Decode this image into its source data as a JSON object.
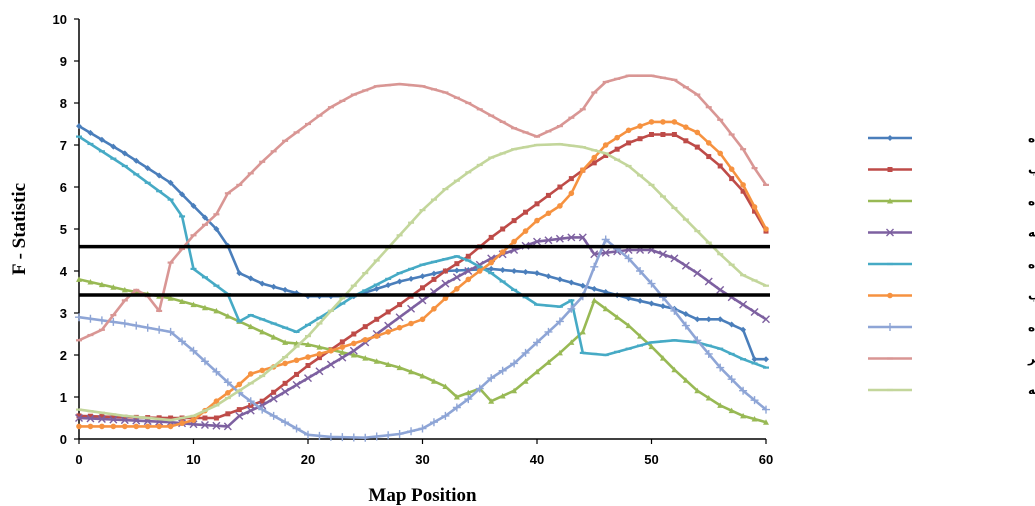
{
  "chart_data": {
    "type": "line",
    "xlabel": "Map Position",
    "ylabel": "F - Statistic",
    "xlim": [
      0,
      60
    ],
    "ylim": [
      0,
      10
    ],
    "xticks": [
      0,
      10,
      20,
      30,
      40,
      50,
      60
    ],
    "yticks": [
      0,
      1,
      2,
      3,
      4,
      5,
      6,
      7,
      8,
      9,
      10
    ],
    "grid": false,
    "legend_position": "right",
    "threshold_lines": [
      4.58,
      3.43
    ],
    "threshold_color": "#000000",
    "series": [
      {
        "name": "درصد روده",
        "color": "#4A7EBB",
        "marker": "diamond",
        "points": [
          [
            0,
            7.45
          ],
          [
            4,
            6.8
          ],
          [
            8,
            6.1
          ],
          [
            12,
            5.0
          ],
          [
            13,
            4.6
          ],
          [
            14,
            3.95
          ],
          [
            16,
            3.7
          ],
          [
            20,
            3.4
          ],
          [
            24,
            3.4
          ],
          [
            28,
            3.75
          ],
          [
            32,
            4.0
          ],
          [
            36,
            4.05
          ],
          [
            40,
            3.95
          ],
          [
            44,
            3.65
          ],
          [
            48,
            3.35
          ],
          [
            52,
            3.1
          ],
          [
            54,
            2.85
          ],
          [
            56,
            2.85
          ],
          [
            58,
            2.6
          ],
          [
            59,
            1.9
          ],
          [
            60,
            1.9
          ]
        ]
      },
      {
        "name": "درصد قلب",
        "color": "#BE4B48",
        "marker": "square",
        "points": [
          [
            0,
            0.55
          ],
          [
            4,
            0.52
          ],
          [
            8,
            0.5
          ],
          [
            12,
            0.5
          ],
          [
            16,
            0.9
          ],
          [
            20,
            1.75
          ],
          [
            24,
            2.5
          ],
          [
            26,
            2.85
          ],
          [
            28,
            3.2
          ],
          [
            30,
            3.6
          ],
          [
            32,
            4.0
          ],
          [
            34,
            4.35
          ],
          [
            36,
            4.8
          ],
          [
            38,
            5.2
          ],
          [
            40,
            5.6
          ],
          [
            42,
            6.0
          ],
          [
            44,
            6.4
          ],
          [
            46,
            6.75
          ],
          [
            48,
            7.05
          ],
          [
            50,
            7.25
          ],
          [
            52,
            7.25
          ],
          [
            54,
            6.95
          ],
          [
            56,
            6.5
          ],
          [
            58,
            5.9
          ],
          [
            60,
            4.95
          ]
        ]
      },
      {
        "name": "درصد پیش معده",
        "color": "#98B954",
        "marker": "triangle",
        "points": [
          [
            0,
            3.8
          ],
          [
            4,
            3.55
          ],
          [
            8,
            3.35
          ],
          [
            12,
            3.05
          ],
          [
            14,
            2.8
          ],
          [
            16,
            2.55
          ],
          [
            18,
            2.3
          ],
          [
            20,
            2.25
          ],
          [
            24,
            2.0
          ],
          [
            28,
            1.7
          ],
          [
            30,
            1.5
          ],
          [
            32,
            1.25
          ],
          [
            33,
            1.0
          ],
          [
            35,
            1.2
          ],
          [
            36,
            0.9
          ],
          [
            38,
            1.15
          ],
          [
            40,
            1.6
          ],
          [
            42,
            2.05
          ],
          [
            44,
            2.55
          ],
          [
            45,
            3.3
          ],
          [
            46,
            3.1
          ],
          [
            48,
            2.7
          ],
          [
            50,
            2.2
          ],
          [
            52,
            1.65
          ],
          [
            54,
            1.15
          ],
          [
            56,
            0.8
          ],
          [
            58,
            0.55
          ],
          [
            60,
            0.4
          ]
        ]
      },
      {
        "name": "درصد سینه",
        "color": "#7D60A0",
        "marker": "x",
        "points": [
          [
            0,
            0.5
          ],
          [
            4,
            0.45
          ],
          [
            8,
            0.4
          ],
          [
            10,
            0.35
          ],
          [
            13,
            0.3
          ],
          [
            14,
            0.55
          ],
          [
            16,
            0.8
          ],
          [
            20,
            1.45
          ],
          [
            24,
            2.1
          ],
          [
            28,
            2.9
          ],
          [
            32,
            3.7
          ],
          [
            36,
            4.3
          ],
          [
            40,
            4.7
          ],
          [
            43,
            4.8
          ],
          [
            44,
            4.8
          ],
          [
            45,
            4.4
          ],
          [
            48,
            4.5
          ],
          [
            50,
            4.5
          ],
          [
            52,
            4.3
          ],
          [
            54,
            3.95
          ],
          [
            56,
            3.55
          ],
          [
            58,
            3.2
          ],
          [
            60,
            2.85
          ]
        ]
      },
      {
        "name": "وزن روده",
        "color": "#46AAC5",
        "marker": "dash",
        "points": [
          [
            0,
            7.2
          ],
          [
            4,
            6.5
          ],
          [
            8,
            5.7
          ],
          [
            9,
            5.3
          ],
          [
            10,
            4.05
          ],
          [
            12,
            3.65
          ],
          [
            13,
            3.45
          ],
          [
            14,
            2.8
          ],
          [
            15,
            2.95
          ],
          [
            17,
            2.75
          ],
          [
            19,
            2.55
          ],
          [
            22,
            3.05
          ],
          [
            24,
            3.4
          ],
          [
            28,
            3.95
          ],
          [
            30,
            4.15
          ],
          [
            33,
            4.35
          ],
          [
            34,
            4.25
          ],
          [
            36,
            3.95
          ],
          [
            38,
            3.55
          ],
          [
            40,
            3.2
          ],
          [
            42,
            3.15
          ],
          [
            43,
            3.3
          ],
          [
            44,
            2.05
          ],
          [
            46,
            2.0
          ],
          [
            48,
            2.15
          ],
          [
            50,
            2.3
          ],
          [
            52,
            2.35
          ],
          [
            54,
            2.3
          ],
          [
            56,
            2.15
          ],
          [
            58,
            1.9
          ],
          [
            60,
            1.7
          ]
        ]
      },
      {
        "name": "وزن قلب",
        "color": "#F69240",
        "marker": "circle",
        "points": [
          [
            0,
            0.3
          ],
          [
            4,
            0.3
          ],
          [
            8,
            0.3
          ],
          [
            10,
            0.45
          ],
          [
            12,
            0.9
          ],
          [
            14,
            1.3
          ],
          [
            15,
            1.55
          ],
          [
            18,
            1.8
          ],
          [
            22,
            2.1
          ],
          [
            26,
            2.45
          ],
          [
            30,
            2.85
          ],
          [
            32,
            3.35
          ],
          [
            34,
            3.8
          ],
          [
            36,
            4.2
          ],
          [
            38,
            4.7
          ],
          [
            40,
            5.2
          ],
          [
            42,
            5.55
          ],
          [
            43,
            5.85
          ],
          [
            44,
            6.4
          ],
          [
            46,
            7.0
          ],
          [
            48,
            7.35
          ],
          [
            50,
            7.55
          ],
          [
            52,
            7.55
          ],
          [
            54,
            7.3
          ],
          [
            56,
            6.8
          ],
          [
            58,
            6.05
          ],
          [
            60,
            5.0
          ]
        ]
      },
      {
        "name": "وزن پیش معده",
        "color": "#8EA5D6",
        "marker": "plus",
        "points": [
          [
            0,
            2.9
          ],
          [
            4,
            2.75
          ],
          [
            8,
            2.55
          ],
          [
            10,
            2.1
          ],
          [
            12,
            1.6
          ],
          [
            14,
            1.1
          ],
          [
            16,
            0.7
          ],
          [
            18,
            0.4
          ],
          [
            20,
            0.1
          ],
          [
            22,
            0.05
          ],
          [
            25,
            0.03
          ],
          [
            28,
            0.12
          ],
          [
            30,
            0.25
          ],
          [
            32,
            0.55
          ],
          [
            34,
            0.95
          ],
          [
            36,
            1.45
          ],
          [
            38,
            1.8
          ],
          [
            40,
            2.3
          ],
          [
            42,
            2.8
          ],
          [
            44,
            3.4
          ],
          [
            45,
            4.1
          ],
          [
            46,
            4.75
          ],
          [
            48,
            4.3
          ],
          [
            50,
            3.7
          ],
          [
            52,
            3.05
          ],
          [
            54,
            2.35
          ],
          [
            56,
            1.7
          ],
          [
            58,
            1.15
          ],
          [
            60,
            0.7
          ]
        ]
      },
      {
        "name": "وزن سر",
        "color": "#D99694",
        "marker": "dash",
        "points": [
          [
            0,
            2.35
          ],
          [
            2,
            2.6
          ],
          [
            4,
            3.3
          ],
          [
            5,
            3.55
          ],
          [
            6,
            3.4
          ],
          [
            7,
            3.05
          ],
          [
            8,
            4.2
          ],
          [
            10,
            4.85
          ],
          [
            12,
            5.35
          ],
          [
            13,
            5.85
          ],
          [
            14,
            6.05
          ],
          [
            16,
            6.6
          ],
          [
            18,
            7.1
          ],
          [
            20,
            7.5
          ],
          [
            22,
            7.9
          ],
          [
            24,
            8.2
          ],
          [
            26,
            8.4
          ],
          [
            28,
            8.45
          ],
          [
            30,
            8.4
          ],
          [
            32,
            8.25
          ],
          [
            34,
            8.0
          ],
          [
            36,
            7.7
          ],
          [
            38,
            7.4
          ],
          [
            40,
            7.2
          ],
          [
            42,
            7.45
          ],
          [
            44,
            7.85
          ],
          [
            45,
            8.25
          ],
          [
            46,
            8.5
          ],
          [
            48,
            8.65
          ],
          [
            50,
            8.65
          ],
          [
            52,
            8.55
          ],
          [
            54,
            8.2
          ],
          [
            56,
            7.6
          ],
          [
            58,
            6.9
          ],
          [
            59,
            6.45
          ],
          [
            60,
            6.05
          ]
        ]
      },
      {
        "name": "وزن سینه",
        "color": "#C3D69B",
        "marker": "dash",
        "points": [
          [
            0,
            0.7
          ],
          [
            4,
            0.55
          ],
          [
            8,
            0.45
          ],
          [
            10,
            0.55
          ],
          [
            12,
            0.8
          ],
          [
            14,
            1.15
          ],
          [
            16,
            1.5
          ],
          [
            18,
            1.95
          ],
          [
            20,
            2.45
          ],
          [
            22,
            3.05
          ],
          [
            24,
            3.65
          ],
          [
            26,
            4.25
          ],
          [
            28,
            4.85
          ],
          [
            30,
            5.45
          ],
          [
            32,
            5.95
          ],
          [
            34,
            6.35
          ],
          [
            36,
            6.7
          ],
          [
            38,
            6.9
          ],
          [
            40,
            7.0
          ],
          [
            42,
            7.02
          ],
          [
            44,
            6.95
          ],
          [
            46,
            6.8
          ],
          [
            48,
            6.5
          ],
          [
            50,
            6.05
          ],
          [
            52,
            5.5
          ],
          [
            54,
            4.95
          ],
          [
            56,
            4.4
          ],
          [
            58,
            3.9
          ],
          [
            60,
            3.65
          ]
        ]
      }
    ]
  }
}
